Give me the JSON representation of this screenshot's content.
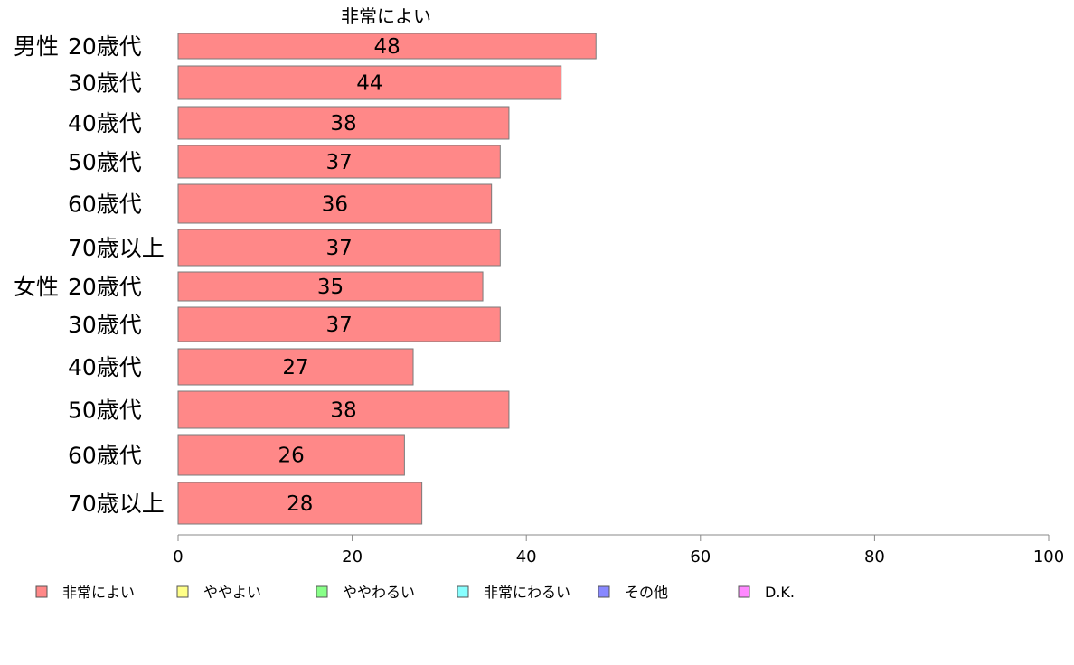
{
  "chart_data": {
    "type": "bar",
    "orientation": "horizontal",
    "stacked": true,
    "column_header": "非常によい",
    "groups": [
      {
        "label": "男性",
        "start_index": 0
      },
      {
        "label": "女性",
        "start_index": 6
      }
    ],
    "categories": [
      "20歳代",
      "30歳代",
      "40歳代",
      "50歳代",
      "60歳代",
      "70歳以上",
      "20歳代",
      "30歳代",
      "40歳代",
      "50歳代",
      "60歳代",
      "70歳以上"
    ],
    "series": [
      {
        "name": "非常によい",
        "color": "#ff8888",
        "values": [
          48,
          44,
          38,
          37,
          36,
          37,
          35,
          37,
          27,
          38,
          26,
          28
        ]
      }
    ],
    "legend": [
      {
        "name": "非常によい",
        "color": "#ff8888"
      },
      {
        "name": "ややよい",
        "color": "#ffff88"
      },
      {
        "name": "ややわるい",
        "color": "#88ff88"
      },
      {
        "name": "非常にわるい",
        "color": "#88ffff"
      },
      {
        "name": "その他",
        "color": "#8888ff"
      },
      {
        "name": "D.K.",
        "color": "#ff88ff"
      }
    ],
    "xlim": [
      0,
      100
    ],
    "xticks": [
      0,
      20,
      40,
      60,
      80,
      100
    ],
    "grid": false,
    "legend_position": "bottom"
  }
}
